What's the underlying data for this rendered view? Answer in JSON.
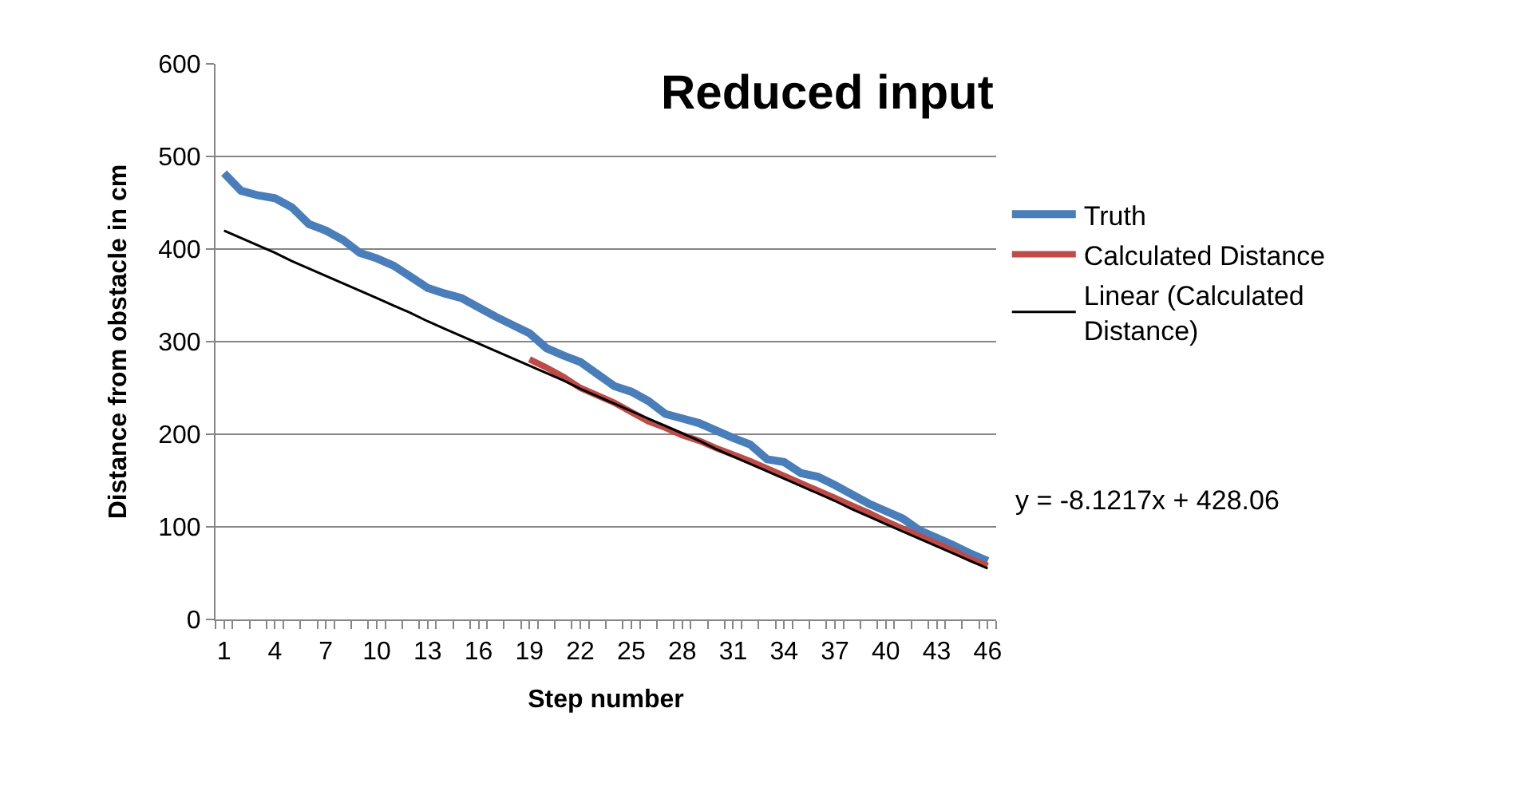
{
  "chart_data": {
    "type": "line",
    "title": "Reduced input",
    "xlabel": "Step number",
    "ylabel": "Distance from obstacle in cm",
    "categories": [
      "1",
      null,
      null,
      "4",
      null,
      null,
      "7",
      null,
      null,
      "10",
      null,
      null,
      "13",
      null,
      null,
      "16",
      null,
      null,
      "19",
      null,
      null,
      "22",
      null,
      null,
      "25",
      null,
      null,
      "28",
      null,
      null,
      "31",
      null,
      null,
      "34",
      null,
      null,
      "37",
      null,
      null,
      "40",
      null,
      null,
      "43",
      null,
      null,
      "46"
    ],
    "series": [
      {
        "name": "Truth",
        "color": "#4a7ebb",
        "values": [
          482,
          463,
          458,
          455,
          445,
          427,
          420,
          410,
          396,
          390,
          382,
          370,
          358,
          352,
          347,
          337,
          327,
          318,
          309,
          293,
          285,
          278,
          265,
          252,
          246,
          236,
          222,
          217,
          212,
          204,
          196,
          189,
          173,
          170,
          158,
          154,
          145,
          135,
          125,
          117,
          109,
          96,
          88,
          80,
          71,
          63
        ]
      },
      {
        "name": "Calculated Distance",
        "color": "#be4b48",
        "values": [
          null,
          null,
          null,
          null,
          null,
          null,
          null,
          null,
          null,
          null,
          null,
          null,
          null,
          null,
          null,
          null,
          null,
          null,
          281,
          272,
          262,
          250,
          242,
          234,
          224,
          214,
          207,
          199,
          193,
          185,
          178,
          171,
          163,
          155,
          147,
          139,
          131,
          123,
          115,
          106,
          98,
          90,
          82,
          74,
          65,
          58
        ]
      },
      {
        "name": "Linear (Calculated Distance)",
        "color": "#000000",
        "values": [
          420,
          412,
          404,
          396,
          387,
          379,
          371,
          363,
          355,
          347,
          339,
          331,
          322,
          314,
          306,
          298,
          290,
          282,
          274,
          266,
          258,
          249,
          241,
          233,
          225,
          217,
          209,
          201,
          193,
          184,
          176,
          168,
          160,
          152,
          144,
          136,
          128,
          119,
          111,
          103,
          95,
          87,
          79,
          71,
          63,
          55
        ]
      }
    ],
    "ylim": [
      0,
      600
    ],
    "yticks": [
      0,
      100,
      200,
      300,
      400,
      500,
      600
    ],
    "grid": "y",
    "legend": "right",
    "marker": "none",
    "line_style": "solid",
    "annotations": [
      "y = -8.1217x + 428.06"
    ]
  }
}
